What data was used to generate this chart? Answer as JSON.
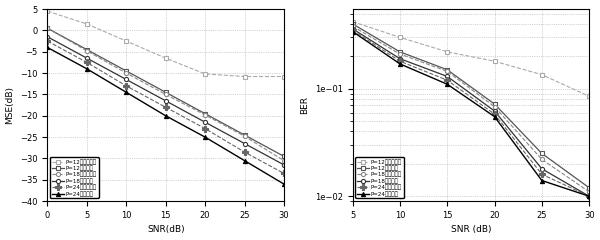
{
  "left": {
    "xlabel": "SNR(dB)",
    "ylabel": "MSE(dB)",
    "xlim": [
      0,
      30
    ],
    "ylim": [
      -40,
      5
    ],
    "yticks": [
      5,
      0,
      -5,
      -10,
      -15,
      -20,
      -25,
      -30,
      -35,
      -40
    ],
    "xticks": [
      0,
      5,
      10,
      15,
      20,
      25,
      30
    ],
    "snr": [
      0,
      5,
      10,
      15,
      20,
      25,
      30
    ],
    "series": [
      {
        "label": "P=12未优化导频",
        "style": "--",
        "marker": "s",
        "color": "#aaaaaa",
        "data": [
          4.5,
          1.5,
          -2.5,
          -6.5,
          -10.2,
          -10.8,
          -10.8
        ]
      },
      {
        "label": "P=12优化导频",
        "style": "-",
        "marker": "s",
        "color": "#555555",
        "data": [
          0.5,
          -4.5,
          -9.5,
          -14.5,
          -19.5,
          -24.5,
          -29.5
        ]
      },
      {
        "label": "P=18未优化导频",
        "style": "--",
        "marker": "o",
        "color": "#777777",
        "data": [
          0.5,
          -4.8,
          -10.0,
          -15.0,
          -19.8,
          -24.8,
          -30.5
        ]
      },
      {
        "label": "P=18优化导频",
        "style": "-",
        "marker": "o",
        "color": "#333333",
        "data": [
          -1.5,
          -6.5,
          -11.5,
          -16.5,
          -21.5,
          -26.5,
          -31.5
        ]
      },
      {
        "label": "P=24未优化导频",
        "style": "--",
        "marker": "+",
        "color": "#555555",
        "data": [
          -2.5,
          -7.5,
          -13.0,
          -18.0,
          -23.0,
          -28.5,
          -33.5
        ]
      },
      {
        "label": "P=24优化导频",
        "style": "-",
        "marker": "^",
        "color": "#000000",
        "data": [
          -4.0,
          -9.0,
          -14.5,
          -20.0,
          -25.0,
          -30.5,
          -36.0
        ]
      }
    ]
  },
  "right": {
    "xlabel": "SNR (dB)",
    "ylabel": "BER",
    "xlim": [
      5,
      30
    ],
    "ylim": [
      0.009,
      0.55
    ],
    "xticks": [
      5,
      10,
      15,
      20,
      25,
      30
    ],
    "snr": [
      5,
      10,
      15,
      20,
      25,
      30
    ],
    "series": [
      {
        "label": "P=12未优化导频",
        "style": "--",
        "marker": "s",
        "color": "#aaaaaa",
        "data": [
          0.42,
          0.3,
          0.22,
          0.18,
          0.135,
          0.085
        ]
      },
      {
        "label": "P=12优化导频",
        "style": "-",
        "marker": "s",
        "color": "#555555",
        "data": [
          0.4,
          0.22,
          0.15,
          0.072,
          0.025,
          0.012
        ]
      },
      {
        "label": "P=18未优化导频",
        "style": "--",
        "marker": "o",
        "color": "#777777",
        "data": [
          0.38,
          0.21,
          0.145,
          0.068,
          0.022,
          0.011
        ]
      },
      {
        "label": "P=18优化导频",
        "style": "-",
        "marker": "o",
        "color": "#333333",
        "data": [
          0.36,
          0.19,
          0.13,
          0.062,
          0.018,
          0.01
        ]
      },
      {
        "label": "P=24未优化导频",
        "style": "--",
        "marker": "+",
        "color": "#555555",
        "data": [
          0.35,
          0.18,
          0.12,
          0.058,
          0.016,
          0.01
        ]
      },
      {
        "label": "P=24优化导频",
        "style": "-",
        "marker": "^",
        "color": "#000000",
        "data": [
          0.34,
          0.17,
          0.11,
          0.055,
          0.014,
          0.01
        ]
      }
    ]
  }
}
